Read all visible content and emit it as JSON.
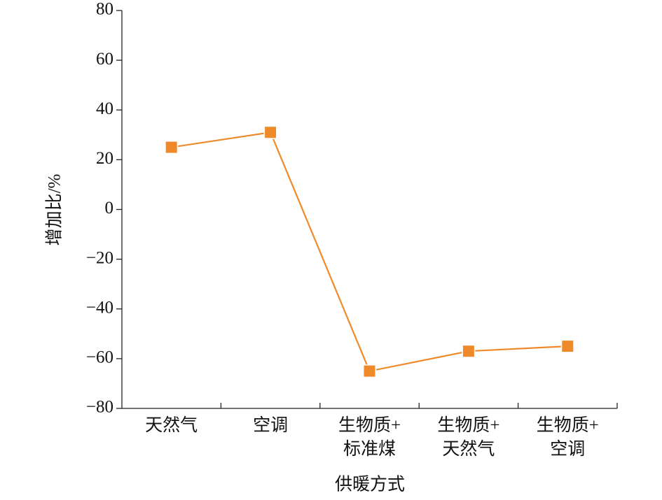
{
  "chart_data": {
    "type": "line",
    "x_label": "供暖方式",
    "y_label": "增加比/%",
    "categories": [
      "天然气",
      "空调",
      "生物质+\n标准煤",
      "生物质+\n天然气",
      "生物质+\n空调"
    ],
    "series": [
      {
        "color": "#ee8a2a",
        "marker": "square",
        "values": [
          25,
          31,
          -65,
          -57,
          -55
        ]
      }
    ],
    "ylim": [
      -80,
      80
    ],
    "yticks": [
      {
        "value": -80,
        "label": "−80"
      },
      {
        "value": -60,
        "label": "−60"
      },
      {
        "value": -40,
        "label": "−40"
      },
      {
        "value": -20,
        "label": "−20"
      },
      0,
      20,
      40,
      60,
      80
    ]
  }
}
